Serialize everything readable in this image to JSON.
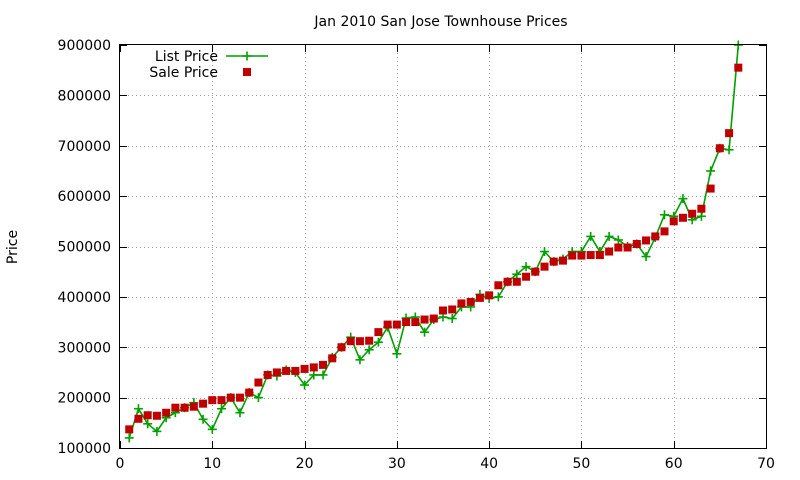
{
  "chart_data": {
    "type": "line",
    "title": "Jan 2010 San Jose Townhouse Prices",
    "xlabel": "",
    "ylabel": "Price",
    "xlim": [
      0,
      70
    ],
    "ylim": [
      100000,
      900000
    ],
    "x_ticks": [
      0,
      10,
      20,
      30,
      40,
      50,
      60,
      70
    ],
    "y_ticks": [
      100000,
      200000,
      300000,
      400000,
      500000,
      600000,
      700000,
      800000,
      900000
    ],
    "grid": true,
    "legend_position": "top-left",
    "series": [
      {
        "name": "List Price",
        "style": "line-plus",
        "color": "#00a000",
        "x": [
          1,
          2,
          3,
          4,
          5,
          6,
          7,
          8,
          9,
          10,
          11,
          12,
          13,
          14,
          15,
          16,
          17,
          18,
          19,
          20,
          21,
          22,
          23,
          24,
          25,
          26,
          27,
          28,
          29,
          30,
          31,
          32,
          33,
          34,
          35,
          36,
          37,
          38,
          39,
          40,
          41,
          42,
          43,
          44,
          45,
          46,
          47,
          48,
          49,
          50,
          51,
          52,
          53,
          54,
          55,
          56,
          57,
          58,
          59,
          60,
          61,
          62,
          63,
          64,
          65,
          66,
          67
        ],
        "values": [
          120000,
          178000,
          148000,
          133000,
          160000,
          170000,
          180000,
          190000,
          157000,
          137000,
          178000,
          200000,
          170000,
          210000,
          200000,
          245000,
          243000,
          255000,
          250000,
          225000,
          245000,
          245000,
          280000,
          300000,
          320000,
          275000,
          295000,
          310000,
          340000,
          287000,
          358000,
          360000,
          330000,
          355000,
          360000,
          357000,
          380000,
          380000,
          405000,
          397000,
          400000,
          430000,
          445000,
          460000,
          450000,
          490000,
          470000,
          475000,
          490000,
          490000,
          520000,
          490000,
          520000,
          513000,
          500000,
          505000,
          480000,
          518000,
          563000,
          560000,
          595000,
          553000,
          560000,
          650000,
          695000,
          692000,
          900000
        ]
      },
      {
        "name": "Sale Price",
        "style": "square-points",
        "color": "#c00000",
        "x": [
          1,
          2,
          3,
          4,
          5,
          6,
          7,
          8,
          9,
          10,
          11,
          12,
          13,
          14,
          15,
          16,
          17,
          18,
          19,
          20,
          21,
          22,
          23,
          24,
          25,
          26,
          27,
          28,
          29,
          30,
          31,
          32,
          33,
          34,
          35,
          36,
          37,
          38,
          39,
          40,
          41,
          42,
          43,
          44,
          45,
          46,
          47,
          48,
          49,
          50,
          51,
          52,
          53,
          54,
          55,
          56,
          57,
          58,
          59,
          60,
          61,
          62,
          63,
          64,
          65,
          66,
          67
        ],
        "values": [
          137000,
          158000,
          165000,
          164000,
          170000,
          180000,
          180000,
          182000,
          188000,
          195000,
          195000,
          200000,
          200000,
          210000,
          230000,
          245000,
          250000,
          253000,
          253000,
          257000,
          260000,
          265000,
          278000,
          300000,
          312000,
          312000,
          313000,
          330000,
          345000,
          345000,
          350000,
          350000,
          355000,
          357000,
          373000,
          375000,
          387000,
          390000,
          398000,
          403000,
          423000,
          430000,
          430000,
          440000,
          450000,
          460000,
          470000,
          472000,
          482000,
          482000,
          483000,
          483000,
          490000,
          498000,
          498000,
          505000,
          512000,
          520000,
          530000,
          550000,
          557000,
          565000,
          575000,
          615000,
          695000,
          725000,
          855000
        ]
      }
    ]
  }
}
